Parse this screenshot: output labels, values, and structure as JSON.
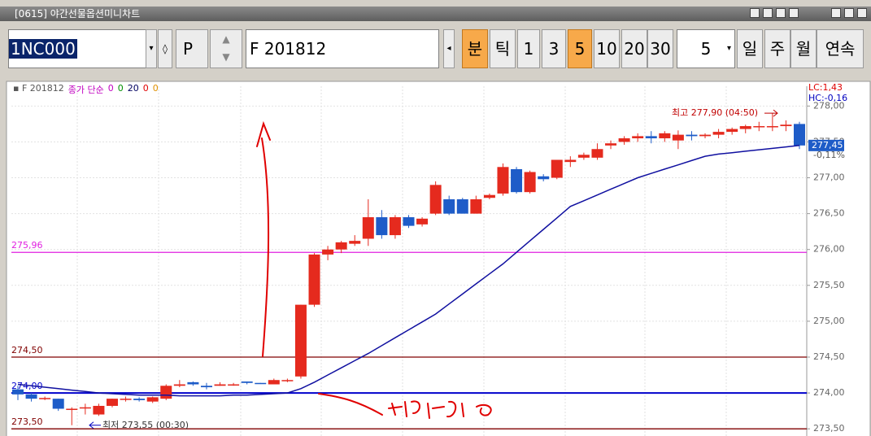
{
  "window": {
    "title": "[0615] 야간선물옵션미니차트"
  },
  "toolbar": {
    "code": "1NC000",
    "p_button": "P",
    "product": "F 201812",
    "buttons": [
      {
        "label": "분",
        "active": true
      },
      {
        "label": "틱",
        "active": false
      },
      {
        "label": "1",
        "active": false
      },
      {
        "label": "3",
        "active": false
      },
      {
        "label": "5",
        "active": true
      },
      {
        "label": "10",
        "active": false
      },
      {
        "label": "20",
        "active": false
      },
      {
        "label": "30",
        "active": false
      }
    ],
    "count": "5",
    "periods": [
      "일",
      "주",
      "월",
      "연속"
    ]
  },
  "chart_data": {
    "type": "candlestick",
    "legend": {
      "symbol": "F 201812",
      "ma_label": "종가 단순",
      "ma_label_color": "#c000c0",
      "params": [
        "0",
        "0",
        "20",
        "0",
        "0"
      ],
      "param_colors": [
        "#c000c0",
        "#009000",
        "#000060",
        "#e00000",
        "#e09000"
      ]
    },
    "ylim": [
      273.4,
      278.14
    ],
    "yticks": [
      {
        "value": 273.5,
        "label": "273,50"
      },
      {
        "value": 274,
        "label": "274,00"
      },
      {
        "value": 274.5,
        "label": "274,50"
      },
      {
        "value": 275,
        "label": "275,00"
      },
      {
        "value": 275.5,
        "label": "275,50"
      },
      {
        "value": 276,
        "label": "276,00"
      },
      {
        "value": 276.5,
        "label": "276,50"
      },
      {
        "value": 277,
        "label": "277,00"
      },
      {
        "value": 277.5,
        "label": "277,50"
      },
      {
        "value": 278,
        "label": "278,00"
      }
    ],
    "grid": true,
    "series": [
      {
        "name": "F 201812",
        "up_color": "#e52a1e",
        "down_color": "#1e5cc8",
        "open": [
          274.05,
          273.98,
          273.92,
          273.92,
          273.78,
          273.8,
          273.7,
          273.82,
          273.92,
          273.92,
          273.88,
          273.92,
          274.1,
          274.15,
          274.1,
          274.1,
          274.12,
          274.16,
          274.14,
          274.12,
          274.18,
          274.23,
          275.23,
          275.93,
          276.0,
          276.08,
          276.15,
          276.45,
          276.2,
          276.45,
          276.35,
          276.5,
          276.7,
          276.7,
          276.5,
          276.72,
          276.78,
          277.12,
          276.8,
          277.02,
          277.0,
          277.22,
          277.28,
          277.28,
          277.45,
          277.5,
          277.55,
          277.58,
          277.55,
          277.52,
          277.6,
          277.58,
          277.6,
          277.64,
          277.68,
          277.72,
          277.72,
          277.72,
          277.75
        ],
        "high": [
          274.1,
          274.0,
          273.95,
          273.92,
          273.8,
          273.85,
          273.85,
          273.92,
          273.95,
          273.94,
          273.95,
          274.12,
          274.18,
          274.16,
          274.14,
          274.15,
          274.14,
          274.16,
          274.14,
          274.2,
          274.2,
          275.23,
          275.95,
          276.05,
          276.12,
          276.2,
          276.7,
          276.55,
          276.48,
          276.48,
          276.45,
          276.95,
          276.75,
          276.72,
          276.75,
          276.78,
          277.2,
          277.15,
          277.1,
          277.05,
          277.25,
          277.3,
          277.35,
          277.48,
          277.52,
          277.58,
          277.62,
          277.65,
          277.65,
          277.66,
          277.65,
          277.62,
          277.68,
          277.7,
          277.74,
          277.78,
          277.9,
          277.8,
          277.78
        ],
        "low": [
          273.9,
          273.88,
          273.9,
          273.75,
          273.55,
          273.7,
          273.68,
          273.8,
          273.88,
          273.88,
          273.86,
          273.9,
          274.08,
          274.1,
          274.05,
          274.1,
          274.1,
          274.12,
          274.13,
          274.12,
          274.15,
          274.2,
          275.2,
          275.85,
          275.95,
          276.05,
          276.05,
          276.15,
          276.15,
          276.3,
          276.32,
          276.48,
          276.48,
          276.5,
          276.5,
          276.7,
          276.75,
          276.78,
          276.78,
          276.95,
          276.98,
          277.15,
          277.25,
          277.25,
          277.4,
          277.46,
          277.5,
          277.48,
          277.5,
          277.4,
          277.52,
          277.55,
          277.55,
          277.6,
          277.62,
          277.65,
          277.65,
          277.65,
          277.4
        ],
        "close": [
          273.98,
          273.92,
          273.93,
          273.78,
          273.78,
          273.8,
          273.82,
          273.92,
          273.92,
          273.9,
          273.94,
          274.1,
          274.12,
          274.12,
          274.08,
          274.12,
          274.12,
          274.14,
          274.13,
          274.18,
          274.18,
          275.23,
          275.93,
          276.0,
          276.1,
          276.12,
          276.45,
          276.2,
          276.45,
          276.33,
          276.43,
          276.9,
          276.5,
          276.5,
          276.7,
          276.76,
          277.15,
          276.8,
          277.08,
          276.98,
          277.25,
          277.25,
          277.32,
          277.4,
          277.48,
          277.55,
          277.58,
          277.55,
          277.62,
          277.6,
          277.58,
          277.6,
          277.64,
          277.68,
          277.72,
          277.72,
          277.72,
          277.74,
          277.45
        ]
      },
      {
        "name": "종가 단순",
        "color": "#1010a0",
        "values": [
          274.12,
          274.1,
          274.08,
          274.06,
          274.04,
          274.02,
          274.0,
          273.99,
          273.98,
          273.97,
          273.97,
          273.97,
          273.96,
          273.96,
          273.96,
          273.96,
          273.97,
          273.97,
          273.98,
          273.99,
          274.0,
          274.06,
          274.15,
          274.25,
          274.35,
          274.45,
          274.55,
          274.66,
          274.77,
          274.88,
          274.99,
          275.1,
          275.24,
          275.38,
          275.52,
          275.66,
          275.8,
          275.96,
          276.12,
          276.28,
          276.44,
          276.6,
          276.68,
          276.76,
          276.84,
          276.92,
          277.0,
          277.06,
          277.12,
          277.18,
          277.24,
          277.3,
          277.33,
          277.35,
          277.37,
          277.39,
          277.41,
          277.43,
          277.45
        ]
      }
    ],
    "hlines": [
      {
        "value": 275.96,
        "label": "275,96",
        "color": "#e020e0"
      },
      {
        "value": 274.5,
        "label": "274,50",
        "color": "#800000"
      },
      {
        "value": 274,
        "label": "274,00",
        "color": "#0000cc"
      },
      {
        "value": 273.5,
        "label": "273,50",
        "color": "#800000"
      }
    ],
    "high_note": {
      "value": 277.9,
      "label": "최고 277,90 (04:50)",
      "color": "#c00000"
    },
    "low_note": {
      "value": 273.55,
      "label": "최저 273,55 (00:30)",
      "color": "#0000c0"
    },
    "current": {
      "value": 277.45,
      "label": "277,45",
      "change": "-0,11%"
    },
    "lc": "LC:1,43",
    "hc": "HC:-0,16"
  }
}
